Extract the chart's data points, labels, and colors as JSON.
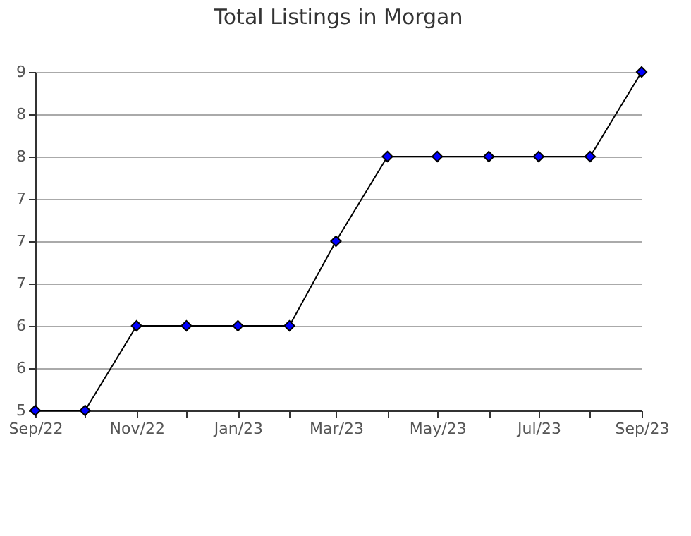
{
  "chart_data": {
    "type": "line",
    "title": "Total Listings in Morgan",
    "x": [
      "2022-09",
      "2022-10",
      "2022-11",
      "2022-12",
      "2023-01",
      "2023-02",
      "2023-03",
      "2023-04",
      "2023-05",
      "2023-06",
      "2023-07",
      "2023-08",
      "2023-09"
    ],
    "series": [
      {
        "color": "#0000ff",
        "values": [
          5,
          5,
          6,
          6,
          6,
          6,
          7,
          8,
          8,
          8,
          8,
          8,
          9
        ]
      }
    ],
    "xlim": [
      "2022-09",
      "2023-09"
    ],
    "xticks": [
      {
        "value": "2022-09",
        "label": "Sep/22"
      },
      {
        "value": "2022-10",
        "label": null
      },
      {
        "value": "2022-11",
        "label": "Nov/22"
      },
      {
        "value": "2022-12",
        "label": null
      },
      {
        "value": "2023-01",
        "label": "Jan/23"
      },
      {
        "value": "2023-02",
        "label": null
      },
      {
        "value": "2023-03",
        "label": "Mar/23"
      },
      {
        "value": "2023-04",
        "label": null
      },
      {
        "value": "2023-05",
        "label": "May/23"
      },
      {
        "value": "2023-06",
        "label": null
      },
      {
        "value": "2023-07",
        "label": "Jul/23"
      },
      {
        "value": "2023-08",
        "label": null
      },
      {
        "value": "2023-09",
        "label": "Sep/23"
      }
    ],
    "ylim": [
      5,
      9
    ],
    "yticks": [
      5,
      {
        "value": 5.5,
        "label": "6"
      },
      6,
      {
        "value": 6.5,
        "label": "7"
      },
      7,
      {
        "value": 7.5,
        "label": "7"
      },
      8,
      {
        "value": 8.5,
        "label": "8"
      },
      9
    ],
    "grid": "y",
    "marker": "diamond",
    "line_style": "solid"
  }
}
